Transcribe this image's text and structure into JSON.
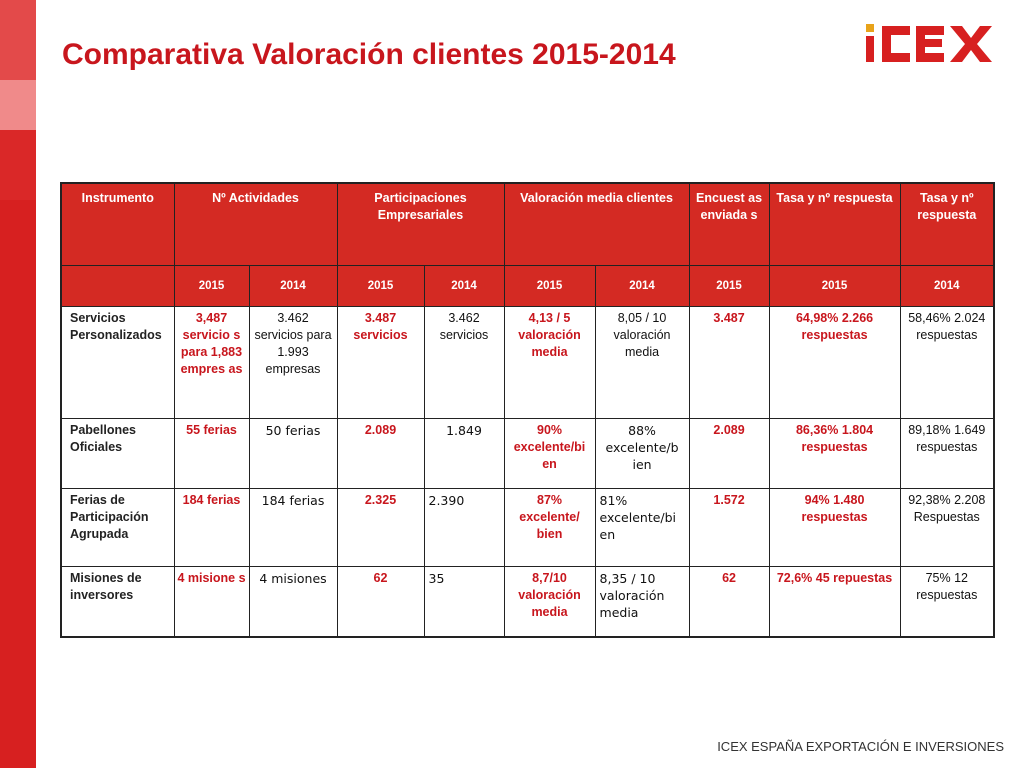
{
  "title": "Comparativa Valoración clientes 2015-2014",
  "logo": {
    "text": "ICEX",
    "color": "#d72020"
  },
  "footer": "ICEX ESPAÑA EXPORTACIÓN E INVERSIONES",
  "colors": {
    "accent": "#c8161d",
    "header_bg": "#d42a23"
  },
  "table": {
    "header": [
      "Instrumento",
      "Nº Actividades",
      "Participaciones Empresariales",
      "Valoración media clientes",
      "Encuest as enviada s",
      "Tasa y nº respuesta",
      "Tasa y nº respuesta"
    ],
    "years": [
      "2015",
      "2014",
      "2015",
      "2014",
      "2015",
      "2014",
      "2015",
      "2015",
      "2014"
    ],
    "rows": [
      {
        "name": "Servicios Personalizados",
        "act_2015": "3,487 servicio s para 1,883 empres as",
        "act_2014": "3.462 servicios para 1.993 empresas",
        "part_2015": "3.487 servicios",
        "part_2014": "3.462 servicios",
        "val_2015": "4,13 / 5 valoración media",
        "val_2014": "8,05 / 10 valoración media",
        "enc_2015": "3.487",
        "tasa_2015": "64,98% 2.266 respuestas",
        "tasa_2014": "58,46% 2.024 respuestas"
      },
      {
        "name": "Pabellones Oficiales",
        "act_2015": "55 ferias",
        "act_2014": "50 ferias",
        "part_2015": "2.089",
        "part_2014": "1.849",
        "val_2015": "90% excelente/bi en",
        "val_2014": "88% excelente/b ien",
        "enc_2015": "2.089",
        "tasa_2015": "86,36% 1.804 respuestas",
        "tasa_2014": "89,18% 1.649 respuestas"
      },
      {
        "name": "Ferias de Participación Agrupada",
        "act_2015": "184 ferias",
        "act_2014": "184 ferias",
        "part_2015": "2.325",
        "part_2014": "2.390",
        "val_2015": "87% excelente/ bien",
        "val_2014": "81% excelente/bi en",
        "enc_2015": "1.572",
        "tasa_2015": "94% 1.480 respuestas",
        "tasa_2014": "92,38% 2.208 Respuestas"
      },
      {
        "name": "Misiones de inversores",
        "act_2015": "4 misione s",
        "act_2014": "4 misiones",
        "part_2015": "62",
        "part_2014": "35",
        "val_2015": "8,7/10 valoración media",
        "val_2014": "8,35 / 10 valoración media",
        "enc_2015": "62",
        "tasa_2015": "72,6% 45 repuestas",
        "tasa_2014": "75% 12 respuestas"
      }
    ]
  }
}
